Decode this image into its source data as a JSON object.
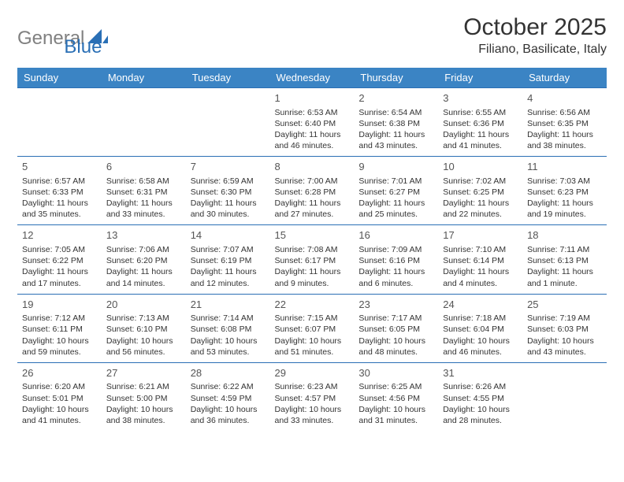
{
  "logo": {
    "gray": "General",
    "blue": "Blue"
  },
  "title": "October 2025",
  "location": "Filiano, Basilicate, Italy",
  "colors": {
    "header_bg": "#3b84c4",
    "header_text": "#ffffff",
    "border": "#2a6fb5",
    "logo_gray": "#808080",
    "logo_blue": "#2a6fb5"
  },
  "weekdays": [
    "Sunday",
    "Monday",
    "Tuesday",
    "Wednesday",
    "Thursday",
    "Friday",
    "Saturday"
  ],
  "weeks": [
    [
      null,
      null,
      null,
      {
        "n": "1",
        "sr": "Sunrise: 6:53 AM",
        "ss": "Sunset: 6:40 PM",
        "d1": "Daylight: 11 hours",
        "d2": "and 46 minutes."
      },
      {
        "n": "2",
        "sr": "Sunrise: 6:54 AM",
        "ss": "Sunset: 6:38 PM",
        "d1": "Daylight: 11 hours",
        "d2": "and 43 minutes."
      },
      {
        "n": "3",
        "sr": "Sunrise: 6:55 AM",
        "ss": "Sunset: 6:36 PM",
        "d1": "Daylight: 11 hours",
        "d2": "and 41 minutes."
      },
      {
        "n": "4",
        "sr": "Sunrise: 6:56 AM",
        "ss": "Sunset: 6:35 PM",
        "d1": "Daylight: 11 hours",
        "d2": "and 38 minutes."
      }
    ],
    [
      {
        "n": "5",
        "sr": "Sunrise: 6:57 AM",
        "ss": "Sunset: 6:33 PM",
        "d1": "Daylight: 11 hours",
        "d2": "and 35 minutes."
      },
      {
        "n": "6",
        "sr": "Sunrise: 6:58 AM",
        "ss": "Sunset: 6:31 PM",
        "d1": "Daylight: 11 hours",
        "d2": "and 33 minutes."
      },
      {
        "n": "7",
        "sr": "Sunrise: 6:59 AM",
        "ss": "Sunset: 6:30 PM",
        "d1": "Daylight: 11 hours",
        "d2": "and 30 minutes."
      },
      {
        "n": "8",
        "sr": "Sunrise: 7:00 AM",
        "ss": "Sunset: 6:28 PM",
        "d1": "Daylight: 11 hours",
        "d2": "and 27 minutes."
      },
      {
        "n": "9",
        "sr": "Sunrise: 7:01 AM",
        "ss": "Sunset: 6:27 PM",
        "d1": "Daylight: 11 hours",
        "d2": "and 25 minutes."
      },
      {
        "n": "10",
        "sr": "Sunrise: 7:02 AM",
        "ss": "Sunset: 6:25 PM",
        "d1": "Daylight: 11 hours",
        "d2": "and 22 minutes."
      },
      {
        "n": "11",
        "sr": "Sunrise: 7:03 AM",
        "ss": "Sunset: 6:23 PM",
        "d1": "Daylight: 11 hours",
        "d2": "and 19 minutes."
      }
    ],
    [
      {
        "n": "12",
        "sr": "Sunrise: 7:05 AM",
        "ss": "Sunset: 6:22 PM",
        "d1": "Daylight: 11 hours",
        "d2": "and 17 minutes."
      },
      {
        "n": "13",
        "sr": "Sunrise: 7:06 AM",
        "ss": "Sunset: 6:20 PM",
        "d1": "Daylight: 11 hours",
        "d2": "and 14 minutes."
      },
      {
        "n": "14",
        "sr": "Sunrise: 7:07 AM",
        "ss": "Sunset: 6:19 PM",
        "d1": "Daylight: 11 hours",
        "d2": "and 12 minutes."
      },
      {
        "n": "15",
        "sr": "Sunrise: 7:08 AM",
        "ss": "Sunset: 6:17 PM",
        "d1": "Daylight: 11 hours",
        "d2": "and 9 minutes."
      },
      {
        "n": "16",
        "sr": "Sunrise: 7:09 AM",
        "ss": "Sunset: 6:16 PM",
        "d1": "Daylight: 11 hours",
        "d2": "and 6 minutes."
      },
      {
        "n": "17",
        "sr": "Sunrise: 7:10 AM",
        "ss": "Sunset: 6:14 PM",
        "d1": "Daylight: 11 hours",
        "d2": "and 4 minutes."
      },
      {
        "n": "18",
        "sr": "Sunrise: 7:11 AM",
        "ss": "Sunset: 6:13 PM",
        "d1": "Daylight: 11 hours",
        "d2": "and 1 minute."
      }
    ],
    [
      {
        "n": "19",
        "sr": "Sunrise: 7:12 AM",
        "ss": "Sunset: 6:11 PM",
        "d1": "Daylight: 10 hours",
        "d2": "and 59 minutes."
      },
      {
        "n": "20",
        "sr": "Sunrise: 7:13 AM",
        "ss": "Sunset: 6:10 PM",
        "d1": "Daylight: 10 hours",
        "d2": "and 56 minutes."
      },
      {
        "n": "21",
        "sr": "Sunrise: 7:14 AM",
        "ss": "Sunset: 6:08 PM",
        "d1": "Daylight: 10 hours",
        "d2": "and 53 minutes."
      },
      {
        "n": "22",
        "sr": "Sunrise: 7:15 AM",
        "ss": "Sunset: 6:07 PM",
        "d1": "Daylight: 10 hours",
        "d2": "and 51 minutes."
      },
      {
        "n": "23",
        "sr": "Sunrise: 7:17 AM",
        "ss": "Sunset: 6:05 PM",
        "d1": "Daylight: 10 hours",
        "d2": "and 48 minutes."
      },
      {
        "n": "24",
        "sr": "Sunrise: 7:18 AM",
        "ss": "Sunset: 6:04 PM",
        "d1": "Daylight: 10 hours",
        "d2": "and 46 minutes."
      },
      {
        "n": "25",
        "sr": "Sunrise: 7:19 AM",
        "ss": "Sunset: 6:03 PM",
        "d1": "Daylight: 10 hours",
        "d2": "and 43 minutes."
      }
    ],
    [
      {
        "n": "26",
        "sr": "Sunrise: 6:20 AM",
        "ss": "Sunset: 5:01 PM",
        "d1": "Daylight: 10 hours",
        "d2": "and 41 minutes."
      },
      {
        "n": "27",
        "sr": "Sunrise: 6:21 AM",
        "ss": "Sunset: 5:00 PM",
        "d1": "Daylight: 10 hours",
        "d2": "and 38 minutes."
      },
      {
        "n": "28",
        "sr": "Sunrise: 6:22 AM",
        "ss": "Sunset: 4:59 PM",
        "d1": "Daylight: 10 hours",
        "d2": "and 36 minutes."
      },
      {
        "n": "29",
        "sr": "Sunrise: 6:23 AM",
        "ss": "Sunset: 4:57 PM",
        "d1": "Daylight: 10 hours",
        "d2": "and 33 minutes."
      },
      {
        "n": "30",
        "sr": "Sunrise: 6:25 AM",
        "ss": "Sunset: 4:56 PM",
        "d1": "Daylight: 10 hours",
        "d2": "and 31 minutes."
      },
      {
        "n": "31",
        "sr": "Sunrise: 6:26 AM",
        "ss": "Sunset: 4:55 PM",
        "d1": "Daylight: 10 hours",
        "d2": "and 28 minutes."
      },
      null
    ]
  ]
}
